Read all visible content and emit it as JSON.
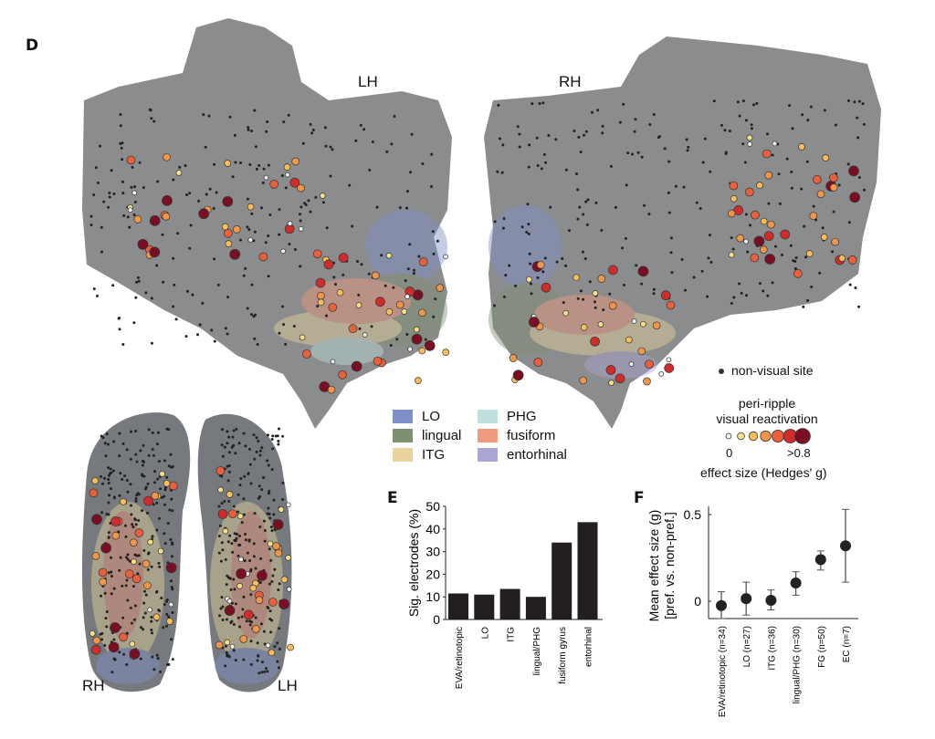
{
  "panel_d": {
    "letter": "D",
    "lh_label": "LH",
    "rh_label": "RH",
    "brain_rh_label": "RH",
    "brain_lh_label": "LH",
    "nonvisual_label": "non-visual site",
    "regions": [
      {
        "name": "LO",
        "color": "#7f8fc8"
      },
      {
        "name": "lingual",
        "color": "#7e9070"
      },
      {
        "name": "ITG",
        "color": "#e8d49a"
      },
      {
        "name": "PHG",
        "color": "#bfe0dc"
      },
      {
        "name": "fusiform",
        "color": "#f29a7c"
      },
      {
        "name": "entorhinal",
        "color": "#a9a6d6"
      }
    ],
    "effect_legend": {
      "title_line1": "peri-ripple",
      "title_line2": "visual reactivation",
      "min_label": "0",
      "max_label": ">0.8",
      "axis_label": "effect size (Hedges' g)",
      "colors": [
        "#f4f4f4",
        "#f5e08a",
        "#f5be5a",
        "#f0964a",
        "#e8603c",
        "#d02c2c",
        "#7a0f24"
      ]
    }
  },
  "chart_data": [
    {
      "panel": "E",
      "type": "bar",
      "ylabel": "Sig. electrodes (%)",
      "categories": [
        "EVA/retinotopic",
        "LO",
        "ITG",
        "lingual/PHG",
        "fusiform gyrus",
        "entorhinal"
      ],
      "values": [
        11.5,
        11,
        13.5,
        10,
        34,
        43
      ],
      "yticks": [
        "0",
        "10",
        "20",
        "30",
        "40",
        "50"
      ],
      "ylim": [
        0,
        50
      ],
      "bar_color": "#231f20"
    },
    {
      "panel": "F",
      "type": "scatter",
      "ylabel_line1": "Mean effect size (g)",
      "ylabel_line2": "[pref. vs. non-pref.]",
      "categories": [
        "EVA/retinotopic (n=34)",
        "LO (n=27)",
        "ITG (n=36)",
        "lingual/PHG (n=30)",
        "FG (n=50)",
        "EC (n=7)"
      ],
      "values": [
        -0.025,
        0.015,
        0.005,
        0.105,
        0.24,
        0.32
      ],
      "error_low": [
        -0.1,
        -0.08,
        -0.05,
        0.035,
        0.18,
        0.11
      ],
      "error_high": [
        0.055,
        0.11,
        0.065,
        0.17,
        0.29,
        0.53
      ],
      "yticks": [
        "0",
        "0.5"
      ],
      "ylim": [
        -0.1,
        0.55
      ]
    }
  ]
}
